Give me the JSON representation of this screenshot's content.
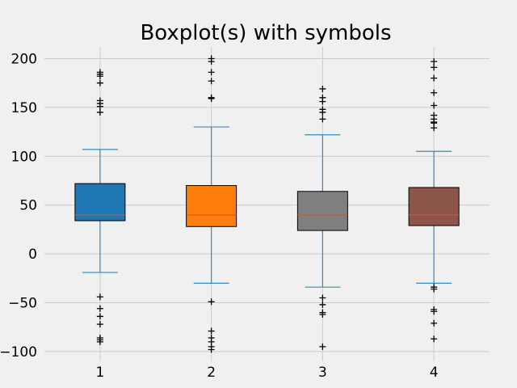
{
  "chart_data": {
    "type": "boxplot",
    "title": "Boxplot(s) with symbols",
    "xlabel": "",
    "ylabel": "",
    "categories": [
      "1",
      "2",
      "3",
      "4"
    ],
    "ylim": [
      -110,
      212
    ],
    "yticks": [
      -100,
      -50,
      0,
      50,
      100,
      150,
      200
    ],
    "ytick_labels": [
      "−100",
      "−50",
      "0",
      "50",
      "100",
      "150",
      "200"
    ],
    "grid": true,
    "background": "#f0f0f0",
    "whisker_color": "#348ABD",
    "median_color": "#E24A33",
    "boxes": [
      {
        "label": "1",
        "color": "#1f77b4",
        "q1": 34,
        "median": 40,
        "q3": 72,
        "whisker_low": -19,
        "whisker_high": 107,
        "fliers": [
          186,
          184,
          182,
          175,
          157,
          154,
          151,
          145,
          -44,
          -56,
          -64,
          -72,
          -86,
          -88,
          -90
        ]
      },
      {
        "label": "2",
        "color": "#ff7f0e",
        "q1": 28,
        "median": 40,
        "q3": 70,
        "whisker_low": -30,
        "whisker_high": 130,
        "fliers": [
          200,
          197,
          186,
          177,
          160,
          159,
          -49,
          -79,
          -86,
          -90,
          -95,
          -98
        ]
      },
      {
        "label": "3",
        "color": "#7f7f7f",
        "q1": 24,
        "median": 40,
        "q3": 64,
        "whisker_low": -34,
        "whisker_high": 122,
        "fliers": [
          169,
          160,
          156,
          148,
          145,
          138,
          -45,
          -52,
          -60,
          -62,
          -95
        ]
      },
      {
        "label": "4",
        "color": "#8c564b",
        "q1": 29,
        "median": 40,
        "q3": 68,
        "whisker_low": -30,
        "whisker_high": 105,
        "fliers": [
          197,
          191,
          180,
          165,
          152,
          142,
          138,
          135,
          134,
          129,
          -34,
          -36,
          -57,
          -59,
          -71,
          -87
        ]
      }
    ]
  }
}
